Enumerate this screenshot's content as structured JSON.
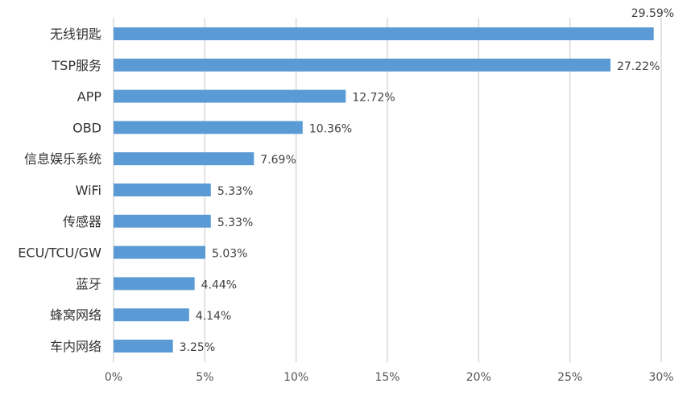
{
  "chart_data": {
    "type": "bar",
    "orientation": "horizontal",
    "categories": [
      "无线钥匙",
      "TSP服务",
      "APP",
      "OBD",
      "信息娱乐系统",
      "WiFi",
      "传感器",
      "ECU/TCU/GW",
      "蓝牙",
      "蜂窝网络",
      "车内网络"
    ],
    "values": [
      29.59,
      27.22,
      12.72,
      10.36,
      7.69,
      5.33,
      5.33,
      5.03,
      4.44,
      4.14,
      3.25
    ],
    "value_labels": [
      "29.59%",
      "27.22%",
      "12.72%",
      "10.36%",
      "7.69%",
      "5.33%",
      "5.33%",
      "5.03%",
      "4.44%",
      "4.14%",
      "3.25%"
    ],
    "xlim": [
      0,
      30
    ],
    "x_ticks": [
      0,
      5,
      10,
      15,
      20,
      25,
      30
    ],
    "x_tick_labels": [
      "0%",
      "5%",
      "10%",
      "15%",
      "20%",
      "25%",
      "30%"
    ],
    "title": "",
    "xlabel": "",
    "ylabel": "",
    "grid": "vertical",
    "legend": "none",
    "bar_color": "#5B9BD5",
    "grid_color": "#D9D9D9"
  }
}
